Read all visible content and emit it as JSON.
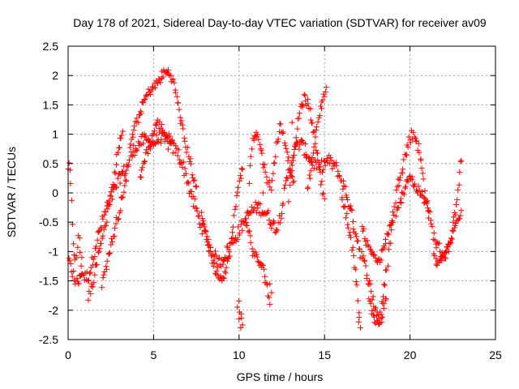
{
  "chart_data": {
    "type": "scatter",
    "title": "Day 178 of 2021, Sidereal Day-to-day VTEC variation (SDTVAR) for receiver av09",
    "xlabel": "GPS time / hours",
    "ylabel": "SDTVAR / TECUs",
    "xlim": [
      0,
      25
    ],
    "ylim": [
      -2.5,
      2.5
    ],
    "xticks": [
      0,
      5,
      10,
      15,
      20,
      25
    ],
    "xtick_labels": [
      "0",
      "5",
      "10",
      "15",
      "20",
      "25"
    ],
    "yticks": [
      -2.5,
      -2,
      -1.5,
      -1,
      -0.5,
      0,
      0.5,
      1,
      1.5,
      2,
      2.5
    ],
    "ytick_labels": [
      "-2.5",
      "-2",
      "-1.5",
      "-1",
      "-0.5",
      "0",
      "0.5",
      "1",
      "1.5",
      "2",
      "2.5"
    ],
    "grid": true,
    "marker": "+",
    "color": "#ff0000",
    "series": [
      {
        "name": "av09",
        "trace": [
          [
            0.0,
            0.45
          ],
          [
            0.1,
            0.35
          ],
          [
            0.2,
            -0.2
          ],
          [
            0.3,
            -0.8
          ],
          [
            0.4,
            -1.2
          ],
          [
            0.5,
            -1.1
          ],
          [
            0.6,
            -0.7
          ],
          [
            0.7,
            -1.0
          ],
          [
            0.8,
            -1.35
          ],
          [
            1.0,
            -1.45
          ],
          [
            1.2,
            -1.4
          ],
          [
            1.4,
            -1.2
          ],
          [
            1.6,
            -0.9
          ],
          [
            1.8,
            -0.7
          ],
          [
            2.0,
            -0.5
          ],
          [
            2.2,
            -0.3
          ],
          [
            2.4,
            -0.15
          ],
          [
            2.6,
            -0.05
          ],
          [
            2.8,
            0.1
          ],
          [
            3.0,
            0.25
          ],
          [
            3.2,
            0.35
          ],
          [
            3.4,
            0.4
          ],
          [
            3.6,
            0.55
          ],
          [
            3.8,
            0.7
          ],
          [
            4.0,
            0.8
          ],
          [
            4.2,
            0.85
          ],
          [
            4.4,
            0.9
          ],
          [
            4.6,
            0.9
          ],
          [
            4.8,
            0.85
          ],
          [
            5.0,
            0.85
          ],
          [
            5.2,
            0.9
          ],
          [
            5.4,
            0.95
          ],
          [
            5.6,
            0.9
          ],
          [
            5.8,
            0.85
          ],
          [
            6.0,
            0.8
          ],
          [
            6.2,
            0.75
          ],
          [
            6.4,
            0.7
          ],
          [
            6.6,
            0.55
          ],
          [
            6.8,
            0.4
          ],
          [
            7.0,
            0.2
          ],
          [
            7.2,
            -0.05
          ],
          [
            7.4,
            -0.2
          ],
          [
            7.6,
            -0.4
          ],
          [
            7.8,
            -0.55
          ],
          [
            8.0,
            -0.7
          ],
          [
            8.2,
            -0.85
          ],
          [
            8.4,
            -1.0
          ],
          [
            8.6,
            -1.1
          ],
          [
            8.8,
            -1.2
          ],
          [
            9.0,
            -1.15
          ],
          [
            9.2,
            -1.05
          ],
          [
            9.4,
            -0.95
          ],
          [
            9.6,
            -0.85
          ],
          [
            9.8,
            -0.75
          ],
          [
            10.0,
            -0.65
          ],
          [
            10.2,
            -0.55
          ],
          [
            10.4,
            -0.45
          ],
          [
            10.6,
            -0.35
          ],
          [
            10.8,
            -0.3
          ],
          [
            11.0,
            -0.25
          ],
          [
            11.2,
            -0.25
          ],
          [
            11.4,
            -0.3
          ],
          [
            11.6,
            -0.35
          ],
          [
            11.8,
            -0.45
          ],
          [
            12.0,
            -0.55
          ],
          [
            12.2,
            -0.6
          ],
          [
            12.4,
            -0.4
          ],
          [
            12.6,
            -0.1
          ],
          [
            12.8,
            0.2
          ],
          [
            13.0,
            0.45
          ],
          [
            13.2,
            0.7
          ],
          [
            13.4,
            0.8
          ],
          [
            13.6,
            0.85
          ],
          [
            13.8,
            0.75
          ],
          [
            14.0,
            0.65
          ],
          [
            14.2,
            0.55
          ],
          [
            14.4,
            0.5
          ],
          [
            14.6,
            0.45
          ],
          [
            14.8,
            0.45
          ],
          [
            15.0,
            0.5
          ],
          [
            15.2,
            0.55
          ],
          [
            15.4,
            0.5
          ],
          [
            15.6,
            0.45
          ],
          [
            15.8,
            0.35
          ],
          [
            16.0,
            0.2
          ],
          [
            16.2,
            0.05
          ],
          [
            16.4,
            -0.15
          ],
          [
            16.6,
            -0.4
          ],
          [
            16.8,
            -0.65
          ],
          [
            17.0,
            -0.9
          ],
          [
            17.2,
            -1.1
          ],
          [
            17.4,
            -1.3
          ],
          [
            17.6,
            -1.5
          ],
          [
            17.8,
            -1.75
          ],
          [
            18.0,
            -2.0
          ],
          [
            18.2,
            -2.1
          ],
          [
            18.4,
            -1.9
          ],
          [
            18.6,
            -1.4
          ],
          [
            18.8,
            -0.9
          ],
          [
            19.0,
            -0.4
          ],
          [
            19.2,
            0.0
          ],
          [
            19.4,
            0.3
          ],
          [
            19.6,
            0.5
          ],
          [
            19.8,
            0.7
          ],
          [
            20.0,
            0.95
          ],
          [
            20.2,
            1.0
          ],
          [
            20.4,
            0.9
          ],
          [
            20.6,
            0.6
          ],
          [
            20.8,
            0.2
          ],
          [
            21.0,
            -0.2
          ],
          [
            21.2,
            -0.5
          ],
          [
            21.4,
            -0.75
          ],
          [
            21.6,
            -0.9
          ],
          [
            21.8,
            -1.0
          ],
          [
            22.0,
            -1.05
          ],
          [
            22.2,
            -1.0
          ],
          [
            22.4,
            -0.8
          ],
          [
            22.6,
            -0.4
          ],
          [
            22.8,
            0.1
          ],
          [
            23.0,
            0.55
          ]
        ],
        "branches": [
          [
            [
              3.6,
              0.8
            ],
            [
              3.9,
              1.1
            ],
            [
              4.2,
              1.35
            ],
            [
              4.5,
              1.6
            ],
            [
              4.8,
              1.75
            ],
            [
              5.0,
              1.8
            ],
            [
              5.3,
              1.9
            ],
            [
              5.6,
              2.05
            ],
            [
              5.9,
              2.05
            ],
            [
              6.1,
              1.95
            ],
            [
              6.3,
              1.7
            ],
            [
              6.5,
              1.4
            ],
            [
              6.7,
              1.1
            ],
            [
              6.9,
              0.8
            ],
            [
              7.1,
              0.6
            ],
            [
              7.3,
              0.3
            ],
            [
              7.5,
              0.1
            ]
          ],
          [
            [
              4.2,
              0.2
            ],
            [
              4.4,
              0.5
            ],
            [
              4.6,
              0.7
            ],
            [
              4.9,
              0.95
            ],
            [
              5.2,
              1.2
            ],
            [
              5.5,
              1.1
            ],
            [
              5.8,
              0.95
            ],
            [
              6.1,
              0.9
            ]
          ],
          [
            [
              2.0,
              -1.55
            ],
            [
              2.2,
              -1.3
            ],
            [
              2.4,
              -1.0
            ],
            [
              2.6,
              -0.8
            ],
            [
              2.8,
              -0.55
            ],
            [
              3.0,
              -0.3
            ],
            [
              3.2,
              0.0
            ],
            [
              3.4,
              0.2
            ]
          ],
          [
            [
              0.0,
              -1.1
            ],
            [
              0.2,
              -1.3
            ],
            [
              0.4,
              -1.5
            ],
            [
              0.6,
              -1.5
            ],
            [
              0.8,
              -1.4
            ]
          ],
          [
            [
              1.2,
              -1.75
            ],
            [
              1.4,
              -1.6
            ],
            [
              1.6,
              -1.3
            ],
            [
              1.8,
              -1.0
            ],
            [
              2.0,
              -0.75
            ],
            [
              2.2,
              -0.5
            ],
            [
              2.4,
              -0.2
            ],
            [
              2.6,
              0.1
            ],
            [
              2.8,
              0.5
            ],
            [
              3.0,
              0.8
            ],
            [
              3.2,
              1.05
            ]
          ],
          [
            [
              7.8,
              -0.3
            ],
            [
              8.0,
              -0.6
            ],
            [
              8.3,
              -1.0
            ],
            [
              8.6,
              -1.3
            ],
            [
              8.9,
              -1.45
            ],
            [
              9.2,
              -1.35
            ],
            [
              9.4,
              -1.1
            ],
            [
              9.6,
              -0.7
            ],
            [
              9.8,
              -0.2
            ],
            [
              10.0,
              0.25
            ],
            [
              10.2,
              0.4
            ]
          ],
          [
            [
              10.0,
              -1.9
            ],
            [
              10.1,
              -2.1
            ],
            [
              10.2,
              -2.25
            ]
          ],
          [
            [
              10.4,
              -0.4
            ],
            [
              10.6,
              -0.7
            ],
            [
              10.8,
              -1.0
            ],
            [
              11.0,
              -1.1
            ],
            [
              11.2,
              -1.2
            ],
            [
              11.4,
              -1.3
            ],
            [
              11.6,
              -1.5
            ],
            [
              11.7,
              -1.7
            ],
            [
              11.8,
              -1.9
            ]
          ],
          [
            [
              10.6,
              0.2
            ],
            [
              10.7,
              0.6
            ],
            [
              10.8,
              0.95
            ],
            [
              11.0,
              1.05
            ],
            [
              11.2,
              0.85
            ],
            [
              11.4,
              0.55
            ],
            [
              11.6,
              0.3
            ],
            [
              11.8,
              0.1
            ]
          ],
          [
            [
              11.9,
              0.0
            ],
            [
              12.0,
              0.35
            ],
            [
              12.2,
              0.8
            ],
            [
              12.4,
              1.15
            ],
            [
              12.6,
              1.0
            ],
            [
              12.8,
              0.7
            ],
            [
              13.0,
              0.4
            ],
            [
              13.2,
              0.2
            ]
          ],
          [
            [
              13.0,
              0.1
            ],
            [
              13.2,
              0.6
            ],
            [
              13.4,
              1.1
            ],
            [
              13.6,
              1.45
            ],
            [
              13.8,
              1.6
            ],
            [
              14.0,
              1.55
            ],
            [
              14.2,
              1.3
            ],
            [
              14.4,
              1.0
            ],
            [
              14.6,
              0.6
            ],
            [
              14.8,
              0.2
            ],
            [
              15.0,
              -0.1
            ]
          ],
          [
            [
              14.0,
              0.1
            ],
            [
              14.2,
              0.4
            ],
            [
              14.4,
              0.8
            ],
            [
              14.6,
              1.2
            ],
            [
              14.8,
              1.5
            ],
            [
              15.0,
              1.7
            ],
            [
              15.1,
              1.8
            ]
          ],
          [
            [
              16.0,
              -0.1
            ],
            [
              16.3,
              -0.4
            ],
            [
              16.6,
              -0.9
            ],
            [
              16.8,
              -1.3
            ],
            [
              16.9,
              -1.6
            ],
            [
              17.0,
              -2.1
            ],
            [
              17.1,
              -2.3
            ]
          ],
          [
            [
              17.2,
              -0.5
            ],
            [
              17.4,
              -0.8
            ],
            [
              17.6,
              -0.95
            ],
            [
              17.8,
              -1.0
            ],
            [
              18.0,
              -1.1
            ],
            [
              18.2,
              -1.2
            ],
            [
              18.4,
              -1.0
            ],
            [
              18.7,
              -0.7
            ],
            [
              19.0,
              -0.5
            ]
          ],
          [
            [
              17.6,
              -1.8
            ],
            [
              17.8,
              -2.05
            ],
            [
              18.0,
              -2.2
            ],
            [
              18.2,
              -2.25
            ],
            [
              18.4,
              -2.1
            ],
            [
              18.6,
              -1.8
            ]
          ],
          [
            [
              19.2,
              -0.4
            ],
            [
              19.4,
              -0.2
            ],
            [
              19.6,
              0.0
            ],
            [
              19.8,
              0.2
            ],
            [
              20.0,
              0.3
            ],
            [
              20.3,
              0.1
            ],
            [
              20.6,
              0.0
            ],
            [
              20.9,
              -0.15
            ],
            [
              21.1,
              -0.3
            ]
          ],
          [
            [
              21.4,
              -1.1
            ],
            [
              21.6,
              -1.2
            ],
            [
              21.8,
              -1.15
            ],
            [
              22.0,
              -1.1
            ],
            [
              22.2,
              -0.95
            ],
            [
              22.5,
              -0.7
            ],
            [
              22.8,
              -0.45
            ],
            [
              23.0,
              -0.3
            ]
          ]
        ],
        "outliers": [
          [
            10.0,
            -2.15
          ],
          [
            10.1,
            -2.3
          ],
          [
            11.8,
            -1.55
          ],
          [
            11.9,
            -1.7
          ],
          [
            17.0,
            -2.2
          ],
          [
            9.9,
            -1.95
          ],
          [
            0.8,
            -1.1
          ],
          [
            11.4,
            0.0
          ],
          [
            12.9,
            -0.15
          ],
          [
            13.1,
            1.2
          ]
        ]
      }
    ]
  }
}
